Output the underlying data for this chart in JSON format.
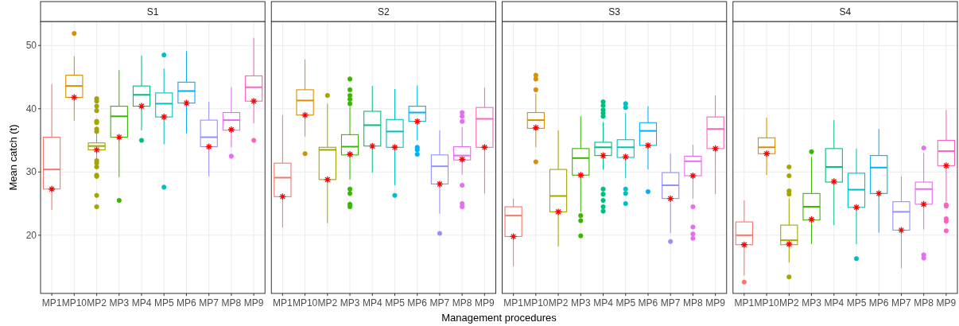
{
  "chart_data": [
    {
      "type": "box",
      "title": "S1",
      "ylabel": "Mean catch (t)",
      "categories": [
        "MP1",
        "MP10",
        "MP2",
        "MP3",
        "MP4",
        "MP5",
        "MP6",
        "MP7",
        "MP8",
        "MP9"
      ],
      "colors": [
        "#f8766d",
        "#d89000",
        "#a3a500",
        "#39b600",
        "#00bf7d",
        "#00bfc4",
        "#00b0f6",
        "#9590ff",
        "#e76bf3",
        "#ff62bc"
      ],
      "ylim": [
        10.8,
        53.8
      ],
      "yticks": [
        20,
        30,
        40,
        50
      ],
      "grid": true,
      "boxes": [
        {
          "low": 24.0,
          "q1": 27.3,
          "median": 30.4,
          "q3": 35.5,
          "high": 43.9,
          "mean": 27.3
        },
        {
          "low": 38.1,
          "q1": 41.8,
          "median": 43.6,
          "q3": 45.3,
          "high": 48.3,
          "mean": 41.8,
          "outliers": [
            51.9
          ]
        },
        {
          "low": 32.1,
          "q1": 33.5,
          "median": 34.1,
          "q3": 34.6,
          "high": 36.3,
          "mean": 33.5,
          "outliers": [
            41.6,
            41.2,
            40.4,
            39.7,
            38.0,
            37.8,
            36.8,
            36.4,
            31.8,
            31.4,
            30.8,
            29.5,
            29.3,
            26.3,
            24.5
          ]
        },
        {
          "low": 29.2,
          "q1": 35.5,
          "median": 38.8,
          "q3": 40.4,
          "high": 46.1,
          "mean": 35.5,
          "outliers": [
            25.5
          ]
        },
        {
          "low": 36.6,
          "q1": 40.4,
          "median": 42.2,
          "q3": 43.6,
          "high": 48.4,
          "mean": 40.4,
          "outliers": [
            35.0
          ]
        },
        {
          "low": 34.4,
          "q1": 38.7,
          "median": 40.8,
          "q3": 42.5,
          "high": 46.3,
          "mean": 38.7,
          "outliers": [
            48.5,
            27.6
          ]
        },
        {
          "low": 36.1,
          "q1": 40.9,
          "median": 42.8,
          "q3": 44.2,
          "high": 49.1,
          "mean": 40.9
        },
        {
          "low": 29.3,
          "q1": 34.0,
          "median": 35.5,
          "q3": 38.2,
          "high": 41.1,
          "mean": 34.0
        },
        {
          "low": 33.9,
          "q1": 36.6,
          "median": 38.2,
          "q3": 39.4,
          "high": 43.4,
          "mean": 36.7,
          "outliers": [
            32.5
          ]
        },
        {
          "low": 37.7,
          "q1": 41.2,
          "median": 43.4,
          "q3": 45.2,
          "high": 51.2,
          "mean": 41.2,
          "outliers": [
            35.0
          ]
        }
      ]
    },
    {
      "type": "box",
      "title": "S2",
      "xlabel": "Management procedures",
      "categories": [
        "MP1",
        "MP10",
        "MP2",
        "MP3",
        "MP4",
        "MP5",
        "MP6",
        "MP7",
        "MP8",
        "MP9"
      ],
      "colors": [
        "#f8766d",
        "#d89000",
        "#a3a500",
        "#39b600",
        "#00bf7d",
        "#00bfc4",
        "#00b0f6",
        "#9590ff",
        "#e76bf3",
        "#ff62bc"
      ],
      "ylim": [
        10.8,
        53.8
      ],
      "yticks": [
        20,
        30,
        40,
        50
      ],
      "grid": true,
      "tick_labels": "x",
      "boxes": [
        {
          "low": 21.2,
          "q1": 26.1,
          "median": 29.1,
          "q3": 31.4,
          "high": 39.0,
          "mean": 26.1
        },
        {
          "low": 35.6,
          "q1": 39.0,
          "median": 41.3,
          "q3": 43.0,
          "high": 47.8,
          "mean": 39.0,
          "outliers": [
            32.9
          ]
        },
        {
          "low": 21.9,
          "q1": 28.8,
          "median": 33.5,
          "q3": 33.9,
          "high": 40.8,
          "mean": 28.8,
          "outliers": [
            42.1
          ]
        },
        {
          "low": 28.8,
          "q1": 32.7,
          "median": 34.0,
          "q3": 35.9,
          "high": 40.3,
          "mean": 32.8,
          "outliers": [
            44.7,
            43.0,
            42.1,
            41.5,
            40.8,
            27.3,
            26.6,
            24.9,
            24.5
          ]
        },
        {
          "low": 29.9,
          "q1": 34.1,
          "median": 37.4,
          "q3": 39.6,
          "high": 43.6,
          "mean": 34.1
        },
        {
          "low": 27.9,
          "q1": 33.9,
          "median": 36.4,
          "q3": 38.3,
          "high": 43.1,
          "mean": 33.9,
          "outliers": [
            26.3
          ]
        },
        {
          "low": 35.0,
          "q1": 38.0,
          "median": 39.4,
          "q3": 40.4,
          "high": 43.7,
          "mean": 38.0,
          "outliers": [
            33.9,
            33.5,
            32.8
          ]
        },
        {
          "low": 23.4,
          "q1": 28.1,
          "median": 30.9,
          "q3": 32.7,
          "high": 36.6,
          "mean": 28.1,
          "outliers": [
            20.3
          ]
        },
        {
          "low": 29.6,
          "q1": 31.9,
          "median": 32.6,
          "q3": 34.0,
          "high": 37.1,
          "mean": 32.0,
          "outliers": [
            39.4,
            38.8,
            38.0,
            27.9,
            25.0,
            24.5
          ]
        },
        {
          "low": 26.6,
          "q1": 33.9,
          "median": 38.4,
          "q3": 40.2,
          "high": 43.3,
          "mean": 33.9
        }
      ]
    },
    {
      "type": "box",
      "title": "S3",
      "categories": [
        "MP1",
        "MP10",
        "MP2",
        "MP3",
        "MP4",
        "MP5",
        "MP6",
        "MP7",
        "MP8",
        "MP9"
      ],
      "colors": [
        "#f8766d",
        "#d89000",
        "#a3a500",
        "#39b600",
        "#00bf7d",
        "#00bfc4",
        "#00b0f6",
        "#9590ff",
        "#e76bf3",
        "#ff62bc"
      ],
      "ylim": [
        10.8,
        53.8
      ],
      "yticks": [
        20,
        30,
        40,
        50
      ],
      "grid": true,
      "tick_labels": "x",
      "boxes": [
        {
          "low": 15.1,
          "q1": 19.8,
          "median": 23.1,
          "q3": 24.5,
          "high": 25.8,
          "mean": 19.8
        },
        {
          "low": 33.9,
          "q1": 36.9,
          "median": 38.2,
          "q3": 39.4,
          "high": 42.4,
          "mean": 37.0,
          "outliers": [
            45.3,
            44.7,
            43.0,
            31.6
          ]
        },
        {
          "low": 18.2,
          "q1": 23.7,
          "median": 26.2,
          "q3": 30.4,
          "high": 36.6,
          "mean": 23.7
        },
        {
          "low": 23.7,
          "q1": 29.5,
          "median": 32.2,
          "q3": 33.7,
          "high": 38.8,
          "mean": 29.5,
          "outliers": [
            23.1,
            22.3,
            19.9
          ]
        },
        {
          "low": 30.4,
          "q1": 32.6,
          "median": 33.9,
          "q3": 34.7,
          "high": 37.9,
          "mean": 32.6,
          "outliers": [
            41.1,
            40.5,
            39.8,
            39.3,
            38.8,
            27.3,
            26.5,
            25.5,
            24.5,
            23.8
          ]
        },
        {
          "low": 29.0,
          "q1": 32.3,
          "median": 33.9,
          "q3": 35.1,
          "high": 39.3,
          "mean": 32.4,
          "outliers": [
            40.8,
            40.2,
            27.3,
            26.6,
            25.0
          ]
        },
        {
          "low": 30.4,
          "q1": 34.2,
          "median": 36.5,
          "q3": 37.8,
          "high": 40.4,
          "mean": 34.2,
          "outliers": [
            26.9
          ]
        },
        {
          "low": 20.3,
          "q1": 25.8,
          "median": 27.9,
          "q3": 29.9,
          "high": 32.9,
          "mean": 25.8,
          "outliers": [
            19.0
          ]
        },
        {
          "low": 25.8,
          "q1": 29.4,
          "median": 31.7,
          "q3": 32.5,
          "high": 34.3,
          "mean": 29.4,
          "outliers": [
            24.5,
            21.3,
            20.2,
            19.5
          ]
        },
        {
          "low": 26.5,
          "q1": 33.7,
          "median": 36.8,
          "q3": 38.7,
          "high": 42.1,
          "mean": 33.7
        }
      ]
    },
    {
      "type": "box",
      "title": "S4",
      "categories": [
        "MP1",
        "MP10",
        "MP2",
        "MP3",
        "MP4",
        "MP5",
        "MP6",
        "MP7",
        "MP8",
        "MP9"
      ],
      "colors": [
        "#f8766d",
        "#d89000",
        "#a3a500",
        "#39b600",
        "#00bf7d",
        "#00bfc4",
        "#00b0f6",
        "#9590ff",
        "#e76bf3",
        "#ff62bc"
      ],
      "ylim": [
        10.8,
        53.8
      ],
      "yticks": [
        20,
        30,
        40,
        50
      ],
      "grid": true,
      "tick_labels": "x",
      "boxes": [
        {
          "low": 13.6,
          "q1": 18.5,
          "median": 20.0,
          "q3": 22.1,
          "high": 25.5,
          "mean": 18.5,
          "outliers": [
            12.6
          ]
        },
        {
          "low": 29.5,
          "q1": 32.9,
          "median": 33.9,
          "q3": 35.4,
          "high": 38.6,
          "mean": 32.9
        },
        {
          "low": 15.7,
          "q1": 18.5,
          "median": 19.2,
          "q3": 21.6,
          "high": 25.8,
          "mean": 18.6,
          "outliers": [
            30.8,
            29.4,
            27.0,
            26.5,
            13.4
          ]
        },
        {
          "low": 18.6,
          "q1": 22.4,
          "median": 24.5,
          "q3": 26.6,
          "high": 32.4,
          "mean": 22.5,
          "outliers": [
            33.2
          ]
        },
        {
          "low": 21.6,
          "q1": 28.4,
          "median": 30.8,
          "q3": 33.7,
          "high": 38.2,
          "mean": 28.5
        },
        {
          "low": 18.6,
          "q1": 24.4,
          "median": 27.2,
          "q3": 29.8,
          "high": 33.7,
          "mean": 24.4,
          "outliers": [
            16.3
          ]
        },
        {
          "low": 20.4,
          "q1": 26.6,
          "median": 30.7,
          "q3": 32.6,
          "high": 36.8,
          "mean": 26.6
        },
        {
          "low": 14.8,
          "q1": 20.8,
          "median": 23.7,
          "q3": 25.3,
          "high": 29.3,
          "mean": 20.8
        },
        {
          "low": 20.9,
          "q1": 24.9,
          "median": 27.3,
          "q3": 28.4,
          "high": 33.0,
          "mean": 24.9,
          "outliers": [
            33.8,
            16.9,
            16.4
          ]
        },
        {
          "low": 25.3,
          "q1": 31.0,
          "median": 33.3,
          "q3": 35.0,
          "high": 39.8,
          "mean": 31.0,
          "outliers": [
            24.8,
            24.6,
            22.6,
            22.2,
            20.7
          ]
        }
      ]
    }
  ]
}
